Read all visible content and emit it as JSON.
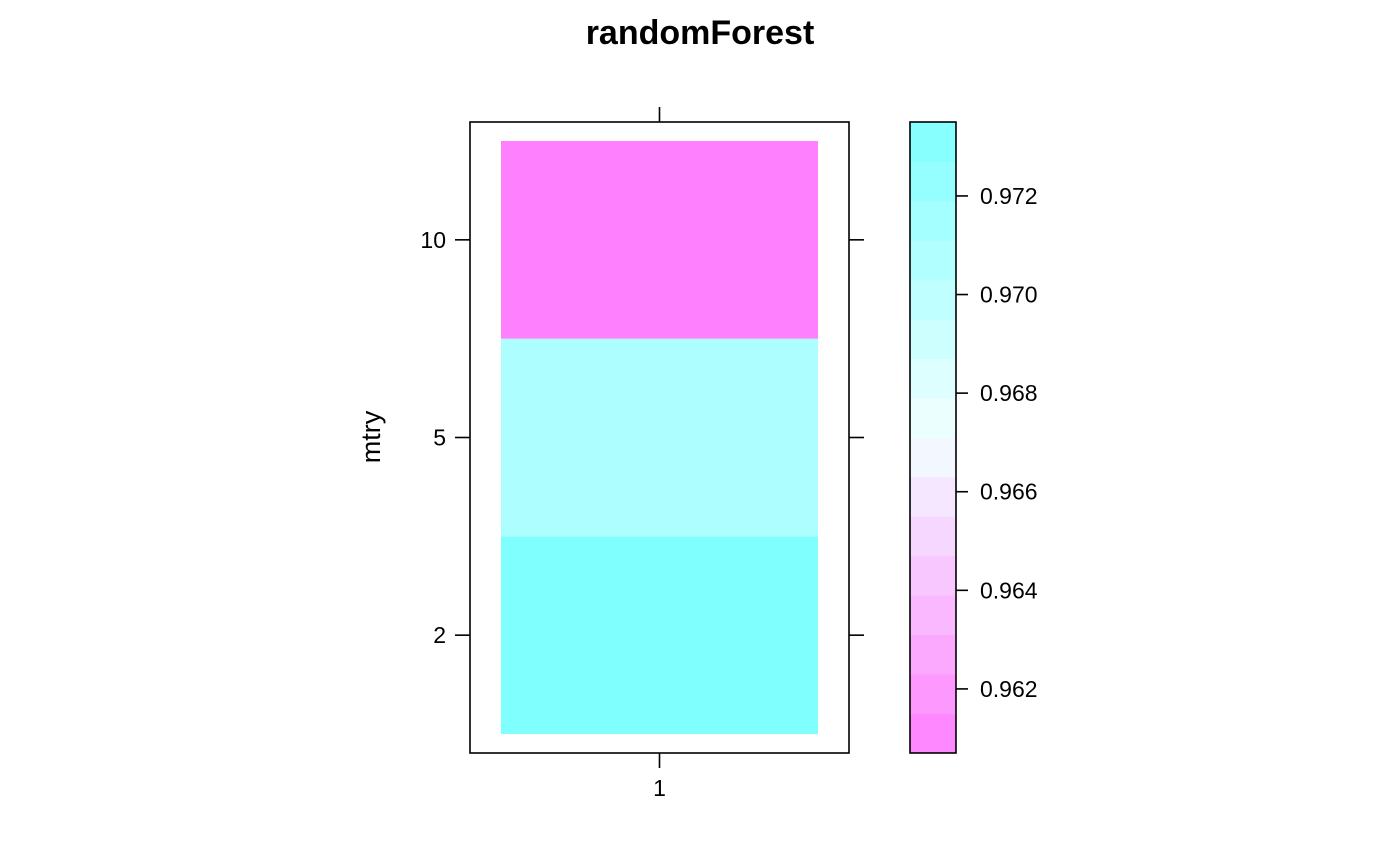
{
  "chart_data": {
    "type": "heatmap",
    "title": "randomForest",
    "xlabel": "",
    "ylabel": "mtry",
    "x_categories": [
      "1"
    ],
    "y_categories": [
      "2",
      "5",
      "10"
    ],
    "cells": [
      {
        "x": "1",
        "y": "2",
        "value": 0.9735
      },
      {
        "x": "1",
        "y": "5",
        "value": 0.971
      },
      {
        "x": "1",
        "y": "10",
        "value": 0.9607
      }
    ],
    "x_ticks": [
      "1"
    ],
    "y_ticks": [
      "2",
      "5",
      "10"
    ],
    "colorbar": {
      "range": [
        0.9607,
        0.9735
      ],
      "ticks": [
        "0.962",
        "0.964",
        "0.966",
        "0.968",
        "0.970",
        "0.972"
      ],
      "tick_values": [
        0.962,
        0.964,
        0.966,
        0.968,
        0.97,
        0.972
      ],
      "low_color": "#ff80ff",
      "mid_color": "#f2ffff",
      "high_color": "#80ffff",
      "bands": 16
    },
    "grid": false,
    "legend_placement": "right"
  }
}
